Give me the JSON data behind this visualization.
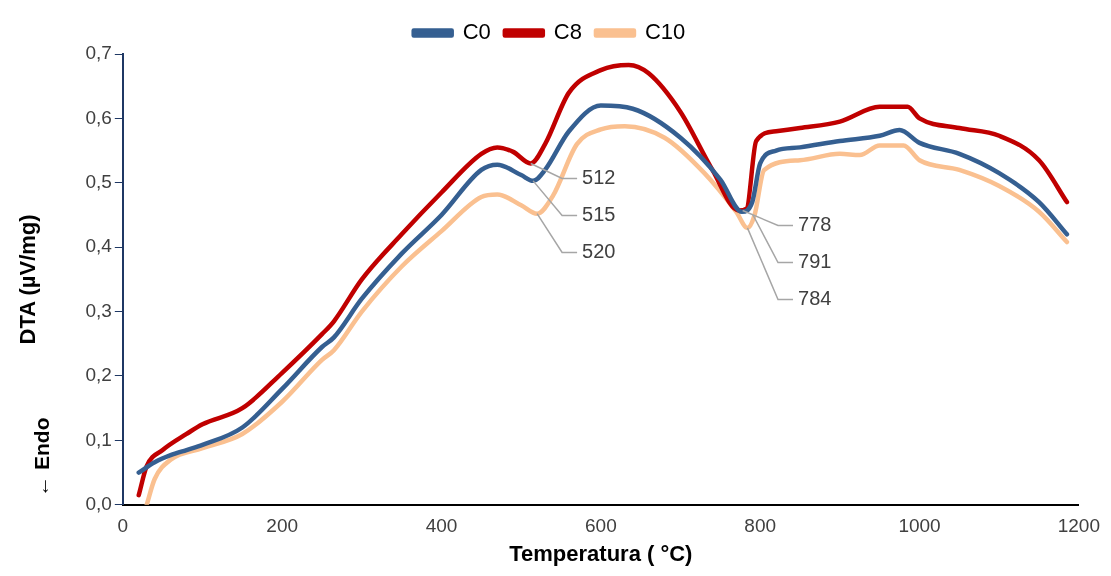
{
  "chart_data": {
    "type": "line",
    "xlabel": "Temperatura ( °C)",
    "ylabel": "DTA (µV/mg)",
    "xlim": [
      0,
      1200
    ],
    "xticks": [
      0,
      200,
      400,
      600,
      800,
      1000,
      1200
    ],
    "ylim": [
      0,
      0.7
    ],
    "yticks": [
      {
        "value": 0,
        "label": "0,0"
      },
      {
        "value": 0.1,
        "label": "0,1"
      },
      {
        "value": 0.2,
        "label": "0,2"
      },
      {
        "value": 0.3,
        "label": "0,3"
      },
      {
        "value": 0.4,
        "label": "0,4"
      },
      {
        "value": 0.5,
        "label": "0,5"
      },
      {
        "value": 0.6,
        "label": "0,6"
      },
      {
        "value": 0.7,
        "label": "0,7"
      }
    ],
    "grid": false,
    "legend": "top",
    "marker": "none",
    "line_style": "solid",
    "series": [
      {
        "name": "C0",
        "color": "#355f91",
        "x": [
          20,
          40,
          60,
          80,
          100,
          150,
          200,
          250,
          265,
          300,
          350,
          400,
          450,
          470,
          500,
          515,
          530,
          560,
          600,
          640,
          700,
          750,
          777,
          790,
          800,
          820,
          850,
          900,
          950,
          975,
          1000,
          1050,
          1100,
          1150,
          1185
        ],
        "values": [
          0.05,
          0.066,
          0.077,
          0.085,
          0.093,
          0.12,
          0.18,
          0.245,
          0.26,
          0.32,
          0.39,
          0.45,
          0.52,
          0.528,
          0.512,
          0.503,
          0.52,
          0.58,
          0.62,
          0.615,
          0.57,
          0.505,
          0.455,
          0.47,
          0.53,
          0.55,
          0.555,
          0.565,
          0.573,
          0.582,
          0.562,
          0.545,
          0.515,
          0.47,
          0.42
        ]
      },
      {
        "name": "C8",
        "color": "#c00000",
        "x": [
          20,
          30,
          50,
          80,
          100,
          150,
          200,
          250,
          265,
          300,
          350,
          400,
          450,
          470,
          490,
          512,
          530,
          560,
          600,
          635,
          660,
          700,
          740,
          773,
          783,
          795,
          820,
          850,
          900,
          950,
          985,
          1000,
          1050,
          1100,
          1150,
          1185
        ],
        "values": [
          0.015,
          0.06,
          0.085,
          0.11,
          0.125,
          0.15,
          0.205,
          0.265,
          0.285,
          0.35,
          0.42,
          0.485,
          0.545,
          0.555,
          0.548,
          0.53,
          0.56,
          0.64,
          0.675,
          0.683,
          0.67,
          0.61,
          0.52,
          0.457,
          0.46,
          0.565,
          0.58,
          0.585,
          0.595,
          0.618,
          0.618,
          0.6,
          0.585,
          0.573,
          0.535,
          0.47
        ]
      },
      {
        "name": "C10",
        "color": "#fac090",
        "x": [
          30,
          40,
          60,
          100,
          150,
          200,
          250,
          265,
          300,
          350,
          400,
          450,
          470,
          500,
          520,
          540,
          570,
          600,
          630,
          680,
          730,
          770,
          784,
          793,
          805,
          850,
          900,
          925,
          950,
          980,
          1000,
          1050,
          1100,
          1150,
          1185
        ],
        "values": [
          0.0,
          0.04,
          0.07,
          0.088,
          0.11,
          0.16,
          0.225,
          0.24,
          0.3,
          0.37,
          0.425,
          0.478,
          0.482,
          0.465,
          0.452,
          0.48,
          0.56,
          0.583,
          0.588,
          0.57,
          0.515,
          0.455,
          0.43,
          0.45,
          0.52,
          0.535,
          0.545,
          0.543,
          0.558,
          0.558,
          0.535,
          0.52,
          0.495,
          0.455,
          0.408
        ]
      }
    ],
    "annotations": [
      {
        "text": "512",
        "x": 512,
        "y": 0.53
      },
      {
        "text": "515",
        "x": 515,
        "y": 0.503
      },
      {
        "text": "520",
        "x": 520,
        "y": 0.452
      },
      {
        "text": "778",
        "x": 778,
        "y": 0.457
      },
      {
        "text": "791",
        "x": 791,
        "y": 0.45
      },
      {
        "text": "784",
        "x": 784,
        "y": 0.43
      },
      "← Endo"
    ]
  }
}
